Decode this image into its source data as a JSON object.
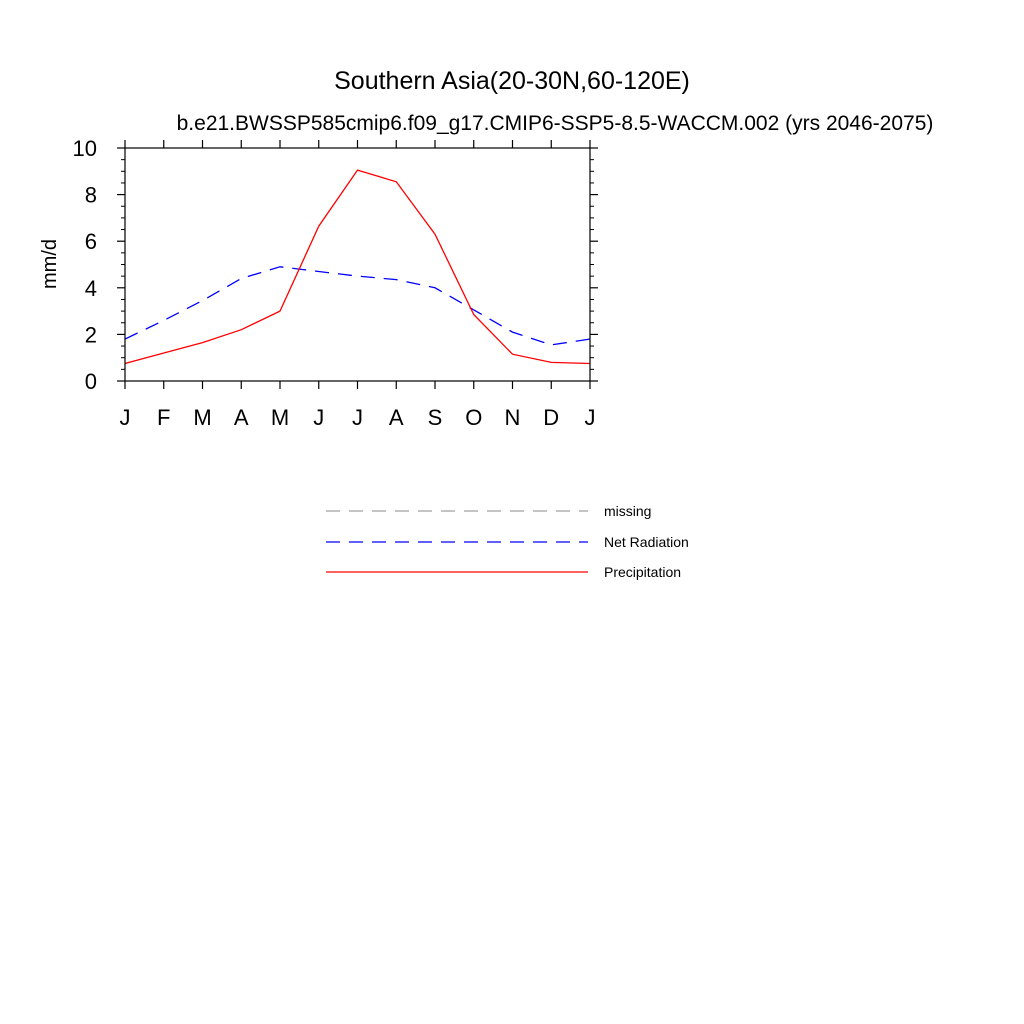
{
  "chart_data": {
    "type": "line",
    "title": "Southern Asia(20-30N,60-120E)",
    "subtitle": "b.e21.BWSSP585cmip6.f09_g17.CMIP6-SSP5-8.5-WACCM.002 (yrs 2046-2075)",
    "ylabel": "mm/d",
    "ylim": [
      0,
      10
    ],
    "yticks": [
      "0",
      "2",
      "4",
      "6",
      "8",
      "10"
    ],
    "categories": [
      "J",
      "F",
      "M",
      "A",
      "M",
      "J",
      "J",
      "A",
      "S",
      "O",
      "N",
      "D",
      "J"
    ],
    "grid": false,
    "legend_position": "below",
    "series": [
      {
        "name": "Net Radiation",
        "color": "#0000ff",
        "dash": "dashed",
        "values": [
          1.8,
          2.6,
          3.45,
          4.4,
          4.9,
          4.7,
          4.5,
          4.35,
          4.0,
          3.05,
          2.1,
          1.55,
          1.8
        ]
      },
      {
        "name": "Precipitation",
        "color": "#ff0000",
        "dash": "solid",
        "values": [
          0.75,
          1.2,
          1.65,
          2.2,
          3.0,
          6.65,
          9.05,
          8.55,
          6.3,
          2.85,
          1.15,
          0.8,
          0.75
        ]
      }
    ],
    "legend": [
      {
        "label": "missing",
        "color": "#a0a0a0",
        "dash": "dashed"
      },
      {
        "label": "Net Radiation",
        "color": "#0000ff",
        "dash": "dashed"
      },
      {
        "label": "Precipitation",
        "color": "#ff0000",
        "dash": "solid"
      }
    ]
  }
}
